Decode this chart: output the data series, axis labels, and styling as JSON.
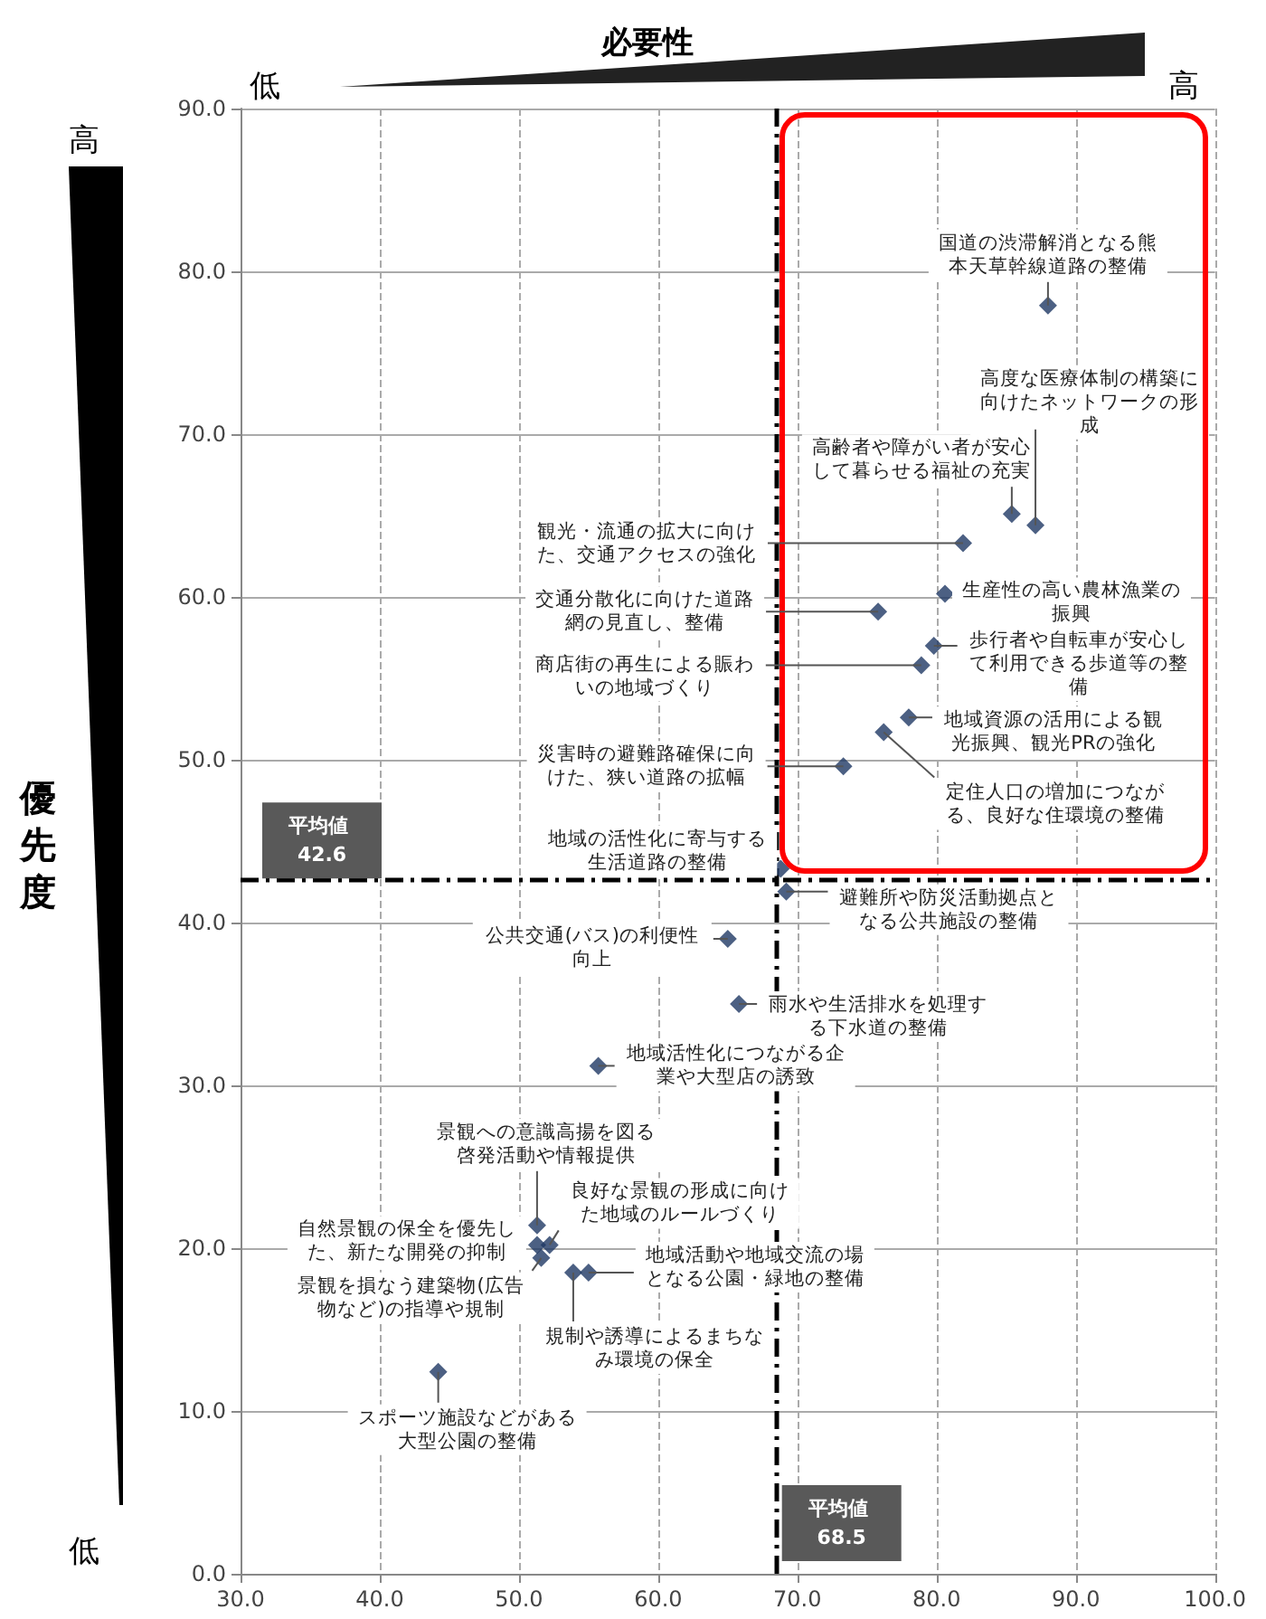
{
  "chart_data": {
    "type": "scatter",
    "xlabel": "必要性",
    "ylabel": "優先度",
    "annotations": [
      "低",
      "高",
      "高",
      "低",
      {
        "text": "国道の渋滞解消となる熊本天草幹線道路の整備",
        "x": 88.0,
        "y": 77.9
      },
      {
        "text": "高度な医療体制の構築に向けたネットワークの形成",
        "x": 87.1,
        "y": 64.4
      },
      {
        "text": "高齢者や障がい者が安心して暮らせる福祉の充実",
        "x": 85.4,
        "y": 65.1
      },
      {
        "text": "観光・流通の拡大に向けた、交通アクセスの強化",
        "x": 81.9,
        "y": 63.3
      },
      {
        "text": "生産性の高い農林漁業の振興",
        "x": 80.6,
        "y": 60.2
      },
      {
        "text": "交通分散化に向けた道路網の見直し、整備",
        "x": 75.8,
        "y": 59.1
      },
      {
        "text": "歩行者や自転車が安心して利用できる歩道等の整備",
        "x": 79.8,
        "y": 57.0
      },
      {
        "text": "商店街の再生による賑わいの地域づくり",
        "x": 78.9,
        "y": 55.8
      },
      {
        "text": "地域資源の活用による観光振興、観光PRの強化",
        "x": 78.0,
        "y": 52.6
      },
      {
        "text": "定住人口の増加につながる、良好な住環境の整備",
        "x": 76.2,
        "y": 51.7
      },
      {
        "text": "災害時の避難路確保に向けた、狭い道路の拡幅",
        "x": 73.3,
        "y": 49.6
      },
      {
        "text": "地域の活性化に寄与する生活道路の整備",
        "x": 68.8,
        "y": 43.3
      },
      {
        "text": "避難所や防災活動拠点となる公共施設の整備",
        "x": 69.2,
        "y": 41.9
      },
      {
        "text": "公共交通(バス)の利便性向上",
        "x": 65.0,
        "y": 39.0
      },
      {
        "text": "雨水や生活排水を処理する下水道の整備",
        "x": 65.8,
        "y": 35.0
      },
      {
        "text": "地域活性化につながる企業や大型店の誘致",
        "x": 55.7,
        "y": 31.2
      },
      {
        "text": "景観への意識高揚を図る啓発活動や情報提供",
        "x": 51.3,
        "y": 21.4
      },
      {
        "text": "良好な景観の形成に向けた地域のルールづくり",
        "x": 52.2,
        "y": 20.2
      },
      {
        "text": "自然景観の保全を優先した、新たな開発の抑制",
        "x": 51.3,
        "y": 20.2
      },
      {
        "text": "景観を損なう建築物(広告物など)の指導や規制",
        "x": 51.6,
        "y": 19.4
      },
      {
        "text": "地域活動や地域交流の場となる公園・緑地の整備",
        "x": 55.0,
        "y": 18.5
      },
      {
        "text": "規制や誘導によるまちなみ環境の保全",
        "x": 53.9,
        "y": 18.5
      },
      {
        "text": "スポーツ施設などがある大型公園の整備",
        "x": 44.2,
        "y": 12.4
      }
    ],
    "xlim": [
      30,
      100
    ],
    "xticks": [
      {
        "value": 30,
        "label": "30.0"
      },
      {
        "value": 40,
        "label": "40.0"
      },
      {
        "value": 50,
        "label": "50.0"
      },
      {
        "value": 60,
        "label": "60.0"
      },
      {
        "value": 70,
        "label": "70.0"
      },
      {
        "value": 80,
        "label": "80.0"
      },
      {
        "value": 90,
        "label": "90.0"
      },
      {
        "value": 100,
        "label": "100.0"
      }
    ],
    "ylim": [
      0,
      90
    ],
    "yticks": [
      {
        "value": 0,
        "label": "0.0"
      },
      {
        "value": 10,
        "label": "10.0"
      },
      {
        "value": 20,
        "label": "20.0"
      },
      {
        "value": 30,
        "label": "30.0"
      },
      {
        "value": 40,
        "label": "40.0"
      },
      {
        "value": 50,
        "label": "50.0"
      },
      {
        "value": 60,
        "label": "60.0"
      },
      {
        "value": 70,
        "label": "70.0"
      },
      {
        "value": 80,
        "label": "80.0"
      },
      {
        "value": 90,
        "label": "90.0"
      }
    ],
    "grid": true,
    "marker": "diamond",
    "ref_lines": [
      {
        "axis": "x",
        "value": 68.5,
        "label": "平均値 68.5",
        "color": "#000000",
        "line_style": "dashdot"
      },
      {
        "axis": "y",
        "value": 42.6,
        "label": "平均値 42.6",
        "color": "#000000",
        "line_style": "dashdot"
      }
    ],
    "series": [
      {
        "color": "#1f3864",
        "x": [
          88.0,
          87.1,
          85.4,
          81.9,
          80.6,
          75.8,
          79.8,
          78.9,
          78.0,
          76.2,
          73.3,
          68.8,
          69.2,
          65.0,
          65.8,
          55.7,
          51.3,
          52.2,
          51.3,
          51.6,
          55.0,
          53.9,
          44.2
        ],
        "values": [
          77.9,
          64.4,
          65.1,
          63.3,
          60.2,
          59.1,
          57.0,
          55.8,
          52.6,
          51.7,
          49.6,
          43.3,
          41.9,
          39.0,
          35.0,
          31.2,
          21.4,
          20.2,
          20.2,
          19.4,
          18.5,
          18.5,
          12.4
        ]
      }
    ]
  }
}
